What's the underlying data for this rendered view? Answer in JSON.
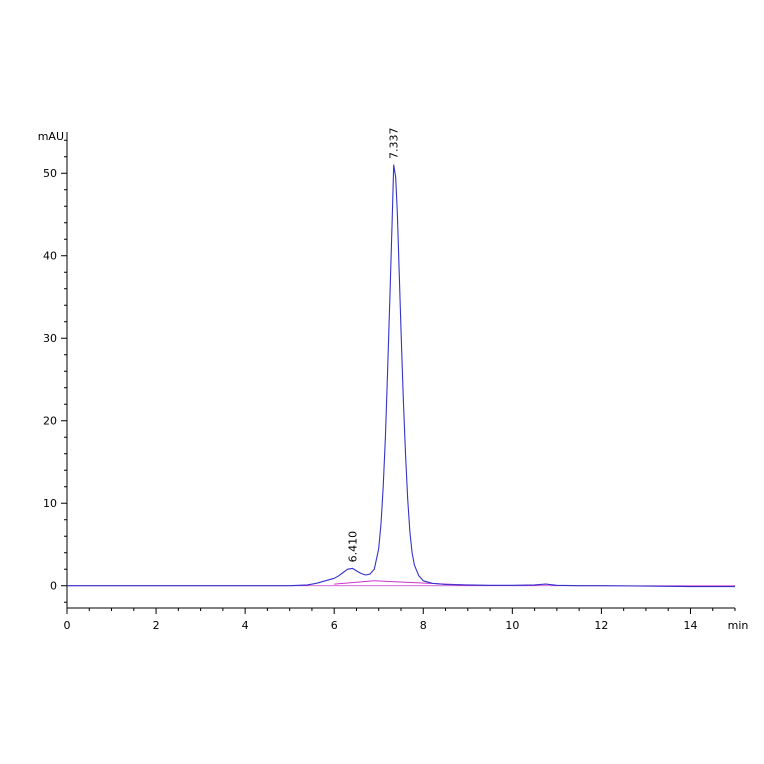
{
  "chart_data": {
    "type": "line",
    "title": "",
    "xlabel": "min",
    "ylabel": "mAU",
    "xlim": [
      0,
      15
    ],
    "ylim": [
      -2.7,
      55
    ],
    "grid": false,
    "x_ticks": [
      0,
      2,
      4,
      6,
      8,
      10,
      12,
      14
    ],
    "y_ticks": [
      0,
      10,
      20,
      30,
      40,
      50
    ],
    "colors": {
      "signal": "#3333cc",
      "baseline": "#cc33cc",
      "axis": "#000000"
    },
    "peaks": [
      {
        "label": "6.410",
        "x": 6.41,
        "y": 2.1
      },
      {
        "label": "7.337",
        "x": 7.337,
        "y": 51.0
      }
    ],
    "series": [
      {
        "x": [
          0,
          1,
          2,
          3,
          4,
          5,
          5.4,
          5.6,
          5.8,
          6.0,
          6.1,
          6.2,
          6.3,
          6.41,
          6.5,
          6.6,
          6.7,
          6.8,
          6.9,
          7.0,
          7.05,
          7.1,
          7.15,
          7.2,
          7.25,
          7.3,
          7.337,
          7.38,
          7.42,
          7.46,
          7.5,
          7.55,
          7.6,
          7.65,
          7.7,
          7.75,
          7.8,
          7.9,
          8.0,
          8.2,
          8.5,
          9.0,
          9.5,
          10.0,
          10.5,
          10.75,
          11.0,
          11.5,
          12,
          13,
          14,
          15
        ],
        "y": [
          0,
          0,
          0,
          0,
          0,
          0,
          0.1,
          0.3,
          0.6,
          0.9,
          1.2,
          1.6,
          2.0,
          2.1,
          1.8,
          1.5,
          1.3,
          1.4,
          2.0,
          4.5,
          7.5,
          12.0,
          18.0,
          26.0,
          35.0,
          44.0,
          51.0,
          49.5,
          45.0,
          38.0,
          31.0,
          23.0,
          16.0,
          10.5,
          6.5,
          4.0,
          2.5,
          1.2,
          0.6,
          0.3,
          0.15,
          0.1,
          0.05,
          0.05,
          0.1,
          0.2,
          0.05,
          0,
          0,
          -0.05,
          -0.1,
          -0.1
        ]
      }
    ],
    "baselines": [
      {
        "x": [
          6.0,
          6.9
        ],
        "y": [
          0.2,
          0.6
        ]
      },
      {
        "x": [
          6.9,
          8.9
        ],
        "y": [
          0.6,
          0.1
        ]
      }
    ]
  }
}
